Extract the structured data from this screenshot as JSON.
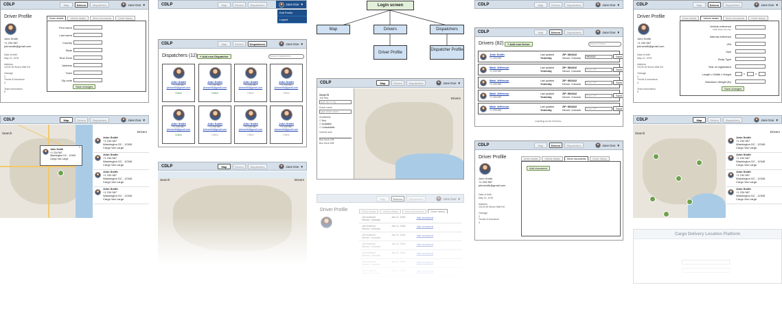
{
  "app": {
    "logo": "CDLP",
    "nav": [
      "Map",
      "Drivers",
      "Dispatchers"
    ],
    "user": "Jane Doe"
  },
  "diagram": {
    "root": "Login screen",
    "children": [
      "Map",
      "Drivers",
      "Dispatchers"
    ],
    "leaves": [
      "Driver Profile",
      "Dispatcher Profile"
    ]
  },
  "profile": {
    "title": "Driver Profile",
    "name": "John Smith",
    "phone": "+1 234 567",
    "email": "johnsmith@gmail.com",
    "dob_l": "Date of birth",
    "dob": "May 12, 1976",
    "address_l": "Address",
    "address": "12120 W Seven Mile Rd",
    "ownage_l": "Ownage",
    "ownage": "2",
    "trucks_l": "Trucks & insurance",
    "trucks": "3",
    "team_l": "Team information",
    "team": "5",
    "tabs": [
      "Driver details",
      "Vehicle details",
      "Driver documents",
      "Driver history"
    ],
    "fields": [
      "First name",
      "Last name",
      "Country",
      "State",
      "Time Zone",
      "Address",
      "Town",
      "Zip code"
    ],
    "save": "Save changes"
  },
  "vehicle": {
    "fields": [
      "Vehicle reference",
      "Internal reference",
      "VIN",
      "Size",
      "Body Type",
      "Year of registration",
      "Length x Width x Height",
      "Maximum Weight (lb)"
    ],
    "sub": "(what others can see)",
    "x": "x"
  },
  "dispatchers": {
    "title": "Dispatchers (12)",
    "add": "+ Add new Dispatcher",
    "search": "Search Dispatchers",
    "name": "John Smith",
    "phone": "+1 234 567",
    "email": "johnsmith@gmail.com",
    "online": "Online",
    "offline": "Offline"
  },
  "drivers": {
    "title": "Drivers (82)",
    "add": "+ Add new Driver",
    "search": "Search Drivers",
    "zip_l": "ZIP:",
    "zip": "9834342",
    "city": "Denver, Colorado",
    "upd": "Last updated",
    "when": "Yesterday",
    "enter": "Enter ZIP",
    "save": "Save",
    "loading": "Loading more Drivers...",
    "names": [
      "John Smith",
      "Mark Jefferson",
      "Mark Jefferson",
      "Mark Jefferson",
      "Mark Jefferson"
    ]
  },
  "menu": [
    "Edit Profile",
    "Logout"
  ],
  "map": {
    "search": "Search",
    "drivers": "Drivers",
    "name": "John Smith",
    "phone": "+1 234 567",
    "loc": "Washington DC , 12345",
    "cargo": "Cargo Van Large",
    "label_tz": "Job Req",
    "ph_zip": "type zip or city",
    "driver_name": "Driver name",
    "ph_driver": "type driver name",
    "availability": "Availability",
    "opts": [
      "Any",
      "Available",
      "Unavailable"
    ],
    "vol": "Volume size",
    "vol_l": "Box truck 10ft",
    "vol_r": "Box truck 26ft"
  },
  "docs": {
    "add": "Add document"
  },
  "history": {
    "item": "Job received",
    "date": "Jan 12, 2016",
    "detail": "Zip: 34567 / Denver"
  },
  "landing": {
    "title": "Cargo Delivery Location Platform"
  }
}
